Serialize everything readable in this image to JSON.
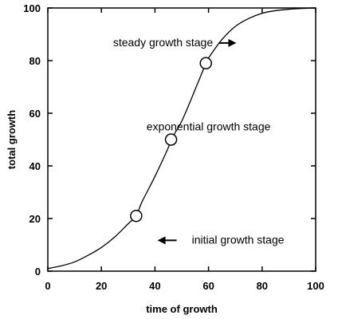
{
  "chart_data": {
    "type": "line",
    "title": "",
    "xlabel": "time of growth",
    "ylabel": "total growth",
    "xlim": [
      0,
      100
    ],
    "ylim": [
      0,
      100
    ],
    "xticks": [
      0,
      20,
      40,
      60,
      80,
      100
    ],
    "yticks": [
      0,
      20,
      40,
      60,
      80,
      100
    ],
    "grid": false,
    "series": [
      {
        "x": [
          0,
          5,
          10,
          15,
          20,
          25,
          30,
          33,
          35,
          40,
          45,
          46,
          50,
          55,
          59,
          60,
          65,
          70,
          75,
          80,
          85,
          90,
          95,
          100
        ],
        "y": [
          1,
          2,
          3.5,
          6,
          9,
          13,
          18,
          21,
          26,
          36,
          47,
          50,
          57,
          69,
          79,
          81,
          88,
          93,
          96,
          98,
          99,
          99.5,
          99.8,
          100
        ]
      }
    ],
    "markers": [
      {
        "x": 33,
        "y": 21
      },
      {
        "x": 46,
        "y": 50
      },
      {
        "x": 59,
        "y": 79
      }
    ],
    "annotations": [
      {
        "text": "steady growth stage",
        "x": 43,
        "y": 87,
        "arrow": "right"
      },
      {
        "text": "exponential growth stage",
        "x": 60,
        "y": 55,
        "arrow": "none"
      },
      {
        "text": "initial growth stage",
        "x": 71,
        "y": 12,
        "arrow": "left"
      }
    ]
  }
}
